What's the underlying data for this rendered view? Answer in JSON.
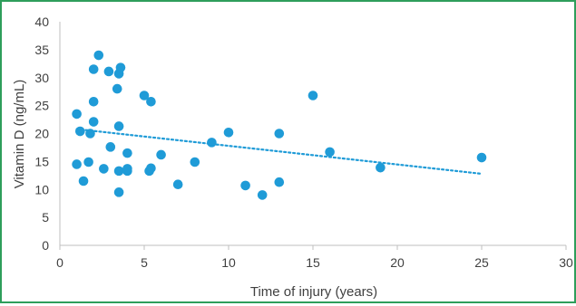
{
  "colors": {
    "frame": "#2e9e5b",
    "marker": "#1f9bd7",
    "trendline": "#1f9bd7",
    "axis": "#bfbfbf",
    "text": "#404040"
  },
  "chart_data": {
    "type": "scatter",
    "title": "",
    "xlabel": "Time of injury (years)",
    "ylabel": "Vitamin D (ng/mL)",
    "xlim": [
      0,
      30
    ],
    "ylim": [
      0,
      40
    ],
    "xticks": [
      0,
      5,
      10,
      15,
      20,
      25,
      30
    ],
    "yticks": [
      0,
      5,
      10,
      15,
      20,
      25,
      30,
      35,
      40
    ],
    "grid": false,
    "legend": "none",
    "series": [
      {
        "marker": "circle",
        "points": [
          [
            1,
            23.5
          ],
          [
            1,
            14.5
          ],
          [
            1.2,
            20.4
          ],
          [
            1.4,
            11.5
          ],
          [
            1.7,
            14.9
          ],
          [
            1.8,
            20.0
          ],
          [
            2.0,
            31.5
          ],
          [
            2.0,
            25.7
          ],
          [
            2.0,
            22.1
          ],
          [
            2.3,
            34.0
          ],
          [
            2.6,
            13.7
          ],
          [
            2.9,
            31.1
          ],
          [
            3.0,
            17.6
          ],
          [
            3.4,
            28.0
          ],
          [
            3.5,
            30.7
          ],
          [
            3.6,
            31.8
          ],
          [
            3.5,
            21.3
          ],
          [
            3.5,
            13.3
          ],
          [
            3.5,
            9.5
          ],
          [
            4.0,
            16.5
          ],
          [
            4.0,
            13.7
          ],
          [
            4.0,
            13.3
          ],
          [
            5.0,
            26.8
          ],
          [
            5.4,
            25.7
          ],
          [
            5.3,
            13.3
          ],
          [
            5.4,
            13.8
          ],
          [
            6.0,
            16.2
          ],
          [
            7.0,
            10.9
          ],
          [
            8.0,
            14.9
          ],
          [
            9.0,
            18.4
          ],
          [
            10.0,
            20.2
          ],
          [
            11.0,
            10.7
          ],
          [
            12.0,
            9.0
          ],
          [
            13.0,
            20.0
          ],
          [
            13.0,
            11.3
          ],
          [
            15.0,
            26.8
          ],
          [
            16.0,
            16.7
          ],
          [
            19.0,
            13.9
          ],
          [
            25.0,
            15.7
          ]
        ]
      }
    ],
    "trendline": {
      "type": "linear",
      "style": "dotted",
      "x": [
        1,
        25
      ],
      "y": [
        20.8,
        12.8
      ]
    }
  }
}
